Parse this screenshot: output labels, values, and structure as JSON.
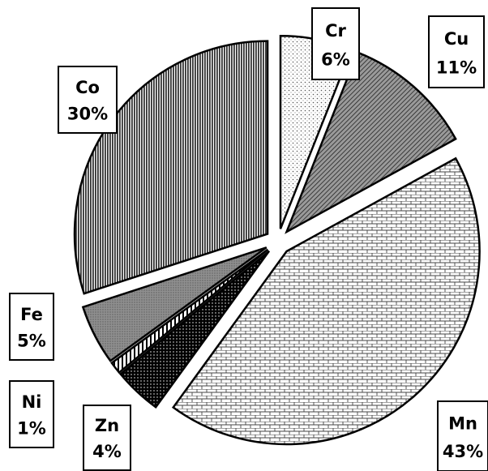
{
  "chart_data": {
    "type": "pie",
    "exploded": true,
    "legend": "none",
    "slices": [
      {
        "label": "Cr",
        "percent_label": "6%",
        "value": 6,
        "pattern": "dots-light",
        "color": "#000000"
      },
      {
        "label": "Cu",
        "percent_label": "11%",
        "value": 11,
        "pattern": "diagonal-hatch",
        "color": "#000000"
      },
      {
        "label": "Mn",
        "percent_label": "43%",
        "value": 43,
        "pattern": "brick",
        "color": "#000000"
      },
      {
        "label": "Zn",
        "percent_label": "4%",
        "value": 4,
        "pattern": "dots-dark",
        "color": "#000000"
      },
      {
        "label": "Ni",
        "percent_label": "1%",
        "value": 1,
        "pattern": "vertical-stripes-white",
        "color": "#000000"
      },
      {
        "label": "Fe",
        "percent_label": "5%",
        "value": 5,
        "pattern": "dense-gray",
        "color": "#000000"
      },
      {
        "label": "Co",
        "percent_label": "30%",
        "value": 30,
        "pattern": "vertical-lines",
        "color": "#000000"
      }
    ]
  }
}
